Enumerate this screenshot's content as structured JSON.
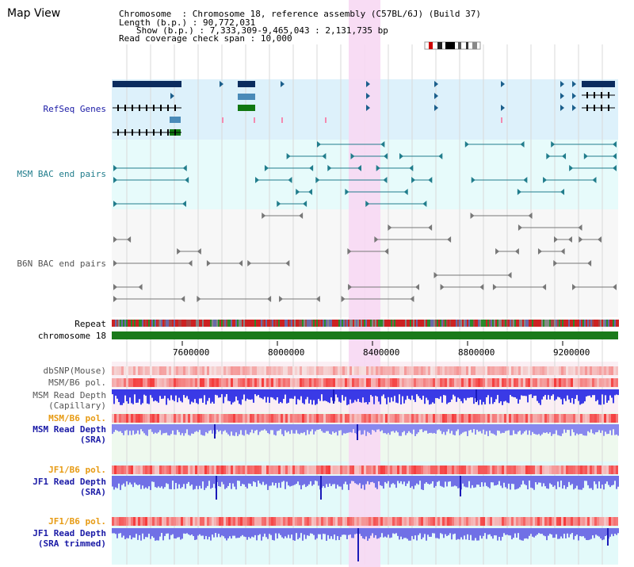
{
  "window": {
    "title": "Map View"
  },
  "header": {
    "chromosome_label": "Chromosome",
    "chromosome_value": "Chromosome 18, reference assembly (C57BL/6J) (Build 37)",
    "length_label": "Length (b.p.)",
    "length_value": "90,772,031",
    "show_label": "Show (b.p.)",
    "show_value": "7,333,309-9,465,043 : 2,131,735 bp",
    "coverage_label": "Read coverage check span",
    "coverage_value": "10,000"
  },
  "tracks": {
    "refseq": "RefSeq Genes",
    "msm_bac": "MSM BAC end pairs",
    "b6n_bac": "B6N BAC end pairs",
    "repeat": "Repeat",
    "chromosome": "chromosome 18",
    "dbsnp": "dbSNP(Mouse)",
    "msm_b6_pol_1": "MSM/B6 pol.",
    "msm_depth_cap_1": "MSM Read Depth",
    "msm_depth_cap_2": "(Capillary)",
    "msm_b6_pol_2": "MSM/B6 pol.",
    "msm_depth_sra_1": "MSM Read Depth",
    "msm_depth_sra_2": "(SRA)",
    "jf1_b6_pol_1": "JF1/B6 pol.",
    "jf1_depth_sra_1": "JF1 Read Depth",
    "jf1_depth_sra_2": "(SRA)",
    "jf1_b6_pol_2": "JF1/B6 pol.",
    "jf1_depth_trim_1": "JF1 Read Depth",
    "jf1_depth_trim_2": "(SRA trimmed)"
  },
  "axis": {
    "ticks": [
      "7600000",
      "8000000",
      "8400000",
      "8800000",
      "9200000"
    ]
  },
  "colors": {
    "refseq_bg": "#ddf1fb",
    "msm_bac_bg": "#e7fbfb",
    "b6n_bac_bg": "#f7f7f7",
    "highlight": "#f7d8f3",
    "refseq_label": "#1a1aa6",
    "msm_label": "#217d8c",
    "b6n_label": "#555555",
    "pol_label": "#e79b14",
    "depth_label": "#1a1aa6",
    "chromosome_bar": "#1a7a1a"
  }
}
